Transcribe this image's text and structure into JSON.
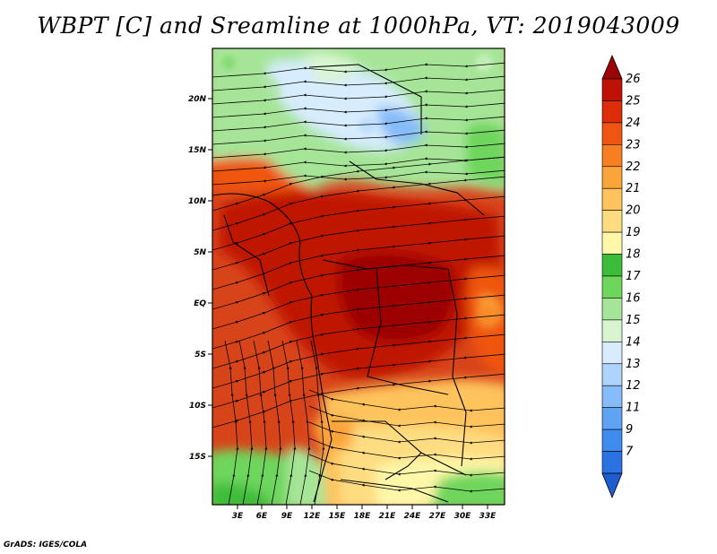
{
  "title": "WBPT [C] and Sreamline at 1000hPa, VT: 2019043009",
  "footer": "GrADS: IGES/COLA",
  "lat_labels": [
    "20N",
    "15N",
    "10N",
    "5N",
    "EQ",
    "5S",
    "10S",
    "15S"
  ],
  "lon_labels": [
    "3E",
    "6E",
    "9E",
    "12E",
    "15E",
    "18E",
    "21E",
    "24E",
    "27E",
    "30E",
    "33E"
  ],
  "colorbar": {
    "labels": [
      "7",
      "9",
      "11",
      "12",
      "13",
      "14",
      "15",
      "16",
      "17",
      "18",
      "19",
      "20",
      "21",
      "22",
      "23",
      "24",
      "25",
      "26"
    ],
    "colors": [
      "#1e5ccf",
      "#2b73e3",
      "#3f8bef",
      "#5fa3f5",
      "#86bcf9",
      "#aed4fc",
      "#d7ecfd",
      "#d9f5d0",
      "#a6e597",
      "#6ed65d",
      "#3cbd3a",
      "#fef7a8",
      "#fedd82",
      "#fec35c",
      "#fba43a",
      "#f77f1f",
      "#ef5511",
      "#dd2c0a",
      "#bf1206",
      "#9c0505"
    ]
  },
  "map": {
    "region": "Central Africa",
    "lat_range": [
      -21,
      24.5
    ],
    "lon_range": [
      0,
      34.5
    ],
    "variable": "WBPT",
    "units": "C",
    "level": "1000hPa",
    "overlay": "streamlines"
  }
}
